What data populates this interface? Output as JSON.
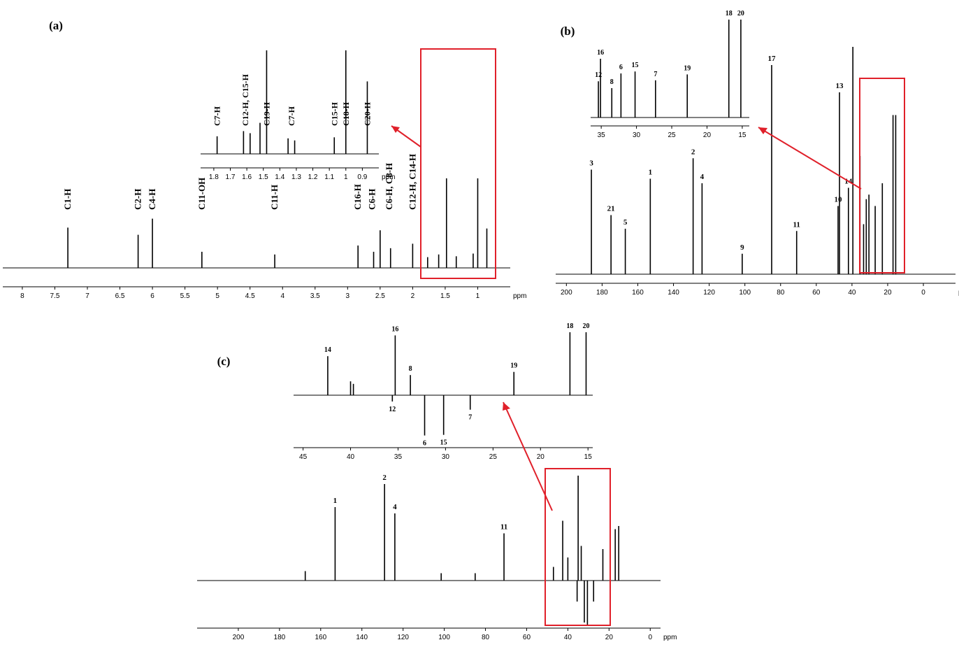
{
  "colors": {
    "trace": "#000000",
    "highlight": "#e0202a",
    "background": "#ffffff"
  },
  "chart_data": [
    {
      "id": "a",
      "type": "line",
      "panel_label": "(a)",
      "unit_label": "ppm",
      "x_axis": {
        "min": 0.5,
        "max": 8.3,
        "reversed": true,
        "ticks": [
          8.0,
          7.5,
          7.0,
          6.5,
          6.0,
          5.5,
          5.0,
          4.5,
          4.0,
          3.5,
          3.0,
          2.5,
          2.0,
          1.5,
          1.0
        ]
      },
      "peaks": [
        {
          "x": 7.3,
          "h": 0.45
        },
        {
          "x": 6.22,
          "h": 0.37
        },
        {
          "x": 6.0,
          "h": 0.55
        },
        {
          "x": 5.24,
          "h": 0.18
        },
        {
          "x": 4.12,
          "h": 0.15
        },
        {
          "x": 2.84,
          "h": 0.25
        },
        {
          "x": 2.6,
          "h": 0.18
        },
        {
          "x": 2.5,
          "h": 0.42
        },
        {
          "x": 2.34,
          "h": 0.22
        },
        {
          "x": 2.0,
          "h": 0.27
        },
        {
          "x": 1.77,
          "h": 0.12
        },
        {
          "x": 1.6,
          "h": 0.15
        },
        {
          "x": 1.48,
          "h": 1.0
        },
        {
          "x": 1.33,
          "h": 0.13
        },
        {
          "x": 1.07,
          "h": 0.16
        },
        {
          "x": 1.0,
          "h": 1.0
        },
        {
          "x": 0.86,
          "h": 0.44
        }
      ],
      "annotations": [
        {
          "text": "C1-H",
          "x": 7.3
        },
        {
          "text": "C2-H",
          "x": 6.22
        },
        {
          "text": "C4-H",
          "x": 6.0
        },
        {
          "text": "C11-OH",
          "x": 5.24
        },
        {
          "text": "C11-H",
          "x": 4.12
        },
        {
          "text": "C16-H",
          "x": 2.84
        },
        {
          "text": "C6-H",
          "x": 2.62
        },
        {
          "text": "C6-H, C8-H",
          "x": 2.36
        },
        {
          "text": "C12-H, C14-H",
          "x": 2.0
        }
      ],
      "inset": {
        "x_axis": {
          "min": 0.8,
          "max": 1.88,
          "reversed": true,
          "ticks": [
            1.8,
            1.7,
            1.6,
            1.5,
            1.4,
            1.3,
            1.2,
            1.1,
            1.0,
            0.9
          ]
        },
        "unit_label": "ppm",
        "peaks": [
          {
            "x": 1.78,
            "h": 0.17
          },
          {
            "x": 1.62,
            "h": 0.22
          },
          {
            "x": 1.58,
            "h": 0.2
          },
          {
            "x": 1.52,
            "h": 0.3
          },
          {
            "x": 1.48,
            "h": 1.0
          },
          {
            "x": 1.35,
            "h": 0.15
          },
          {
            "x": 1.31,
            "h": 0.13
          },
          {
            "x": 1.07,
            "h": 0.16
          },
          {
            "x": 1.0,
            "h": 1.0
          },
          {
            "x": 0.87,
            "h": 0.7
          }
        ],
        "annotations": [
          {
            "text": "C7-H",
            "x": 1.78
          },
          {
            "text": "C12-H, C15-H",
            "x": 1.61
          },
          {
            "text": "C19-H",
            "x": 1.48
          },
          {
            "text": "C7-H",
            "x": 1.33
          },
          {
            "text": "C15-H",
            "x": 1.07
          },
          {
            "text": "C18-H",
            "x": 1.0
          },
          {
            "text": "C20-H",
            "x": 0.87
          }
        ]
      }
    },
    {
      "id": "b",
      "type": "line",
      "panel_label": "(b)",
      "unit_label": "ppm",
      "x_axis": {
        "min": -18,
        "max": 206,
        "reversed": true,
        "ticks": [
          200,
          180,
          160,
          140,
          120,
          100,
          80,
          60,
          40,
          20,
          0
        ]
      },
      "peaks": [
        {
          "x": 186,
          "h": 0.46,
          "label": "3"
        },
        {
          "x": 175,
          "h": 0.26,
          "label": "21"
        },
        {
          "x": 167,
          "h": 0.2,
          "label": "5"
        },
        {
          "x": 153,
          "h": 0.42,
          "label": "1"
        },
        {
          "x": 129,
          "h": 0.51,
          "label": "2"
        },
        {
          "x": 124,
          "h": 0.4,
          "label": "4"
        },
        {
          "x": 101.5,
          "h": 0.09,
          "label": "9"
        },
        {
          "x": 85,
          "h": 0.92,
          "label": "17"
        },
        {
          "x": 71,
          "h": 0.19,
          "label": "11"
        },
        {
          "x": 47,
          "h": 0.8,
          "label": "13"
        },
        {
          "x": 47.8,
          "h": 0.3,
          "label": "10"
        },
        {
          "x": 42,
          "h": 0.38,
          "label": "14"
        },
        {
          "x": 39.5,
          "h": 1.0
        },
        {
          "x": 35.5,
          "h": 0.52
        },
        {
          "x": 33.5,
          "h": 0.22
        },
        {
          "x": 32,
          "h": 0.33
        },
        {
          "x": 30.5,
          "h": 0.35
        },
        {
          "x": 27,
          "h": 0.3
        },
        {
          "x": 23,
          "h": 0.4
        },
        {
          "x": 17,
          "h": 0.7
        },
        {
          "x": 15.5,
          "h": 0.7
        }
      ],
      "inset": {
        "x_axis": {
          "min": 14,
          "max": 36.5,
          "reversed": true,
          "ticks": [
            35,
            30,
            25,
            20,
            15
          ]
        },
        "peaks": [
          {
            "x": 35.4,
            "h": 0.37,
            "label": "12"
          },
          {
            "x": 35.1,
            "h": 0.6,
            "label": "16"
          },
          {
            "x": 33.5,
            "h": 0.3,
            "label": "8"
          },
          {
            "x": 32.2,
            "h": 0.45,
            "label": "6"
          },
          {
            "x": 30.2,
            "h": 0.47,
            "label": "15"
          },
          {
            "x": 27.3,
            "h": 0.38,
            "label": "7"
          },
          {
            "x": 22.8,
            "h": 0.44,
            "label": "19"
          },
          {
            "x": 16.9,
            "h": 1.0,
            "label": "18"
          },
          {
            "x": 15.2,
            "h": 1.0,
            "label": "20"
          }
        ]
      }
    },
    {
      "id": "c",
      "type": "line",
      "panel_label": "(c)",
      "unit_label": "ppm",
      "x_axis": {
        "min": -5,
        "max": 220,
        "reversed": true,
        "ticks": [
          200,
          180,
          160,
          140,
          120,
          100,
          80,
          60,
          40,
          20,
          0
        ]
      },
      "peaks": [
        {
          "x": 167.5,
          "h": 0.09
        },
        {
          "x": 153,
          "h": 0.7,
          "label": "1"
        },
        {
          "x": 129,
          "h": 0.92,
          "label": "2"
        },
        {
          "x": 124,
          "h": 0.64,
          "label": "4"
        },
        {
          "x": 101.5,
          "h": 0.07
        },
        {
          "x": 85,
          "h": 0.07
        },
        {
          "x": 71,
          "h": 0.45,
          "label": "11"
        },
        {
          "x": 47,
          "h": 0.13
        },
        {
          "x": 42.5,
          "h": 0.57
        },
        {
          "x": 40,
          "h": 0.22
        },
        {
          "x": 35.5,
          "h": -0.2
        },
        {
          "x": 35,
          "h": 1.0
        },
        {
          "x": 33.5,
          "h": 0.33
        },
        {
          "x": 32,
          "h": -0.4
        },
        {
          "x": 30.5,
          "h": -0.42
        },
        {
          "x": 27.5,
          "h": -0.2
        },
        {
          "x": 23,
          "h": 0.3
        },
        {
          "x": 17,
          "h": 0.49
        },
        {
          "x": 15.3,
          "h": 0.52
        }
      ],
      "inset": {
        "x_axis": {
          "min": 14.5,
          "max": 46,
          "reversed": true,
          "ticks": [
            45,
            40,
            35,
            30,
            25,
            20,
            15
          ]
        },
        "peaks": [
          {
            "x": 42.4,
            "h": 0.62,
            "label": "14"
          },
          {
            "x": 40,
            "h": 0.22
          },
          {
            "x": 39.7,
            "h": 0.18
          },
          {
            "x": 35.6,
            "h": -0.1,
            "label": "12"
          },
          {
            "x": 35.3,
            "h": 0.95,
            "label": "16"
          },
          {
            "x": 33.7,
            "h": 0.32,
            "label": "8"
          },
          {
            "x": 32.2,
            "h": -0.64,
            "label": "6"
          },
          {
            "x": 30.2,
            "h": -0.63,
            "label": "15"
          },
          {
            "x": 27.4,
            "h": -0.23,
            "label": "7"
          },
          {
            "x": 22.8,
            "h": 0.37,
            "label": "19"
          },
          {
            "x": 16.9,
            "h": 1.0,
            "label": "18"
          },
          {
            "x": 15.2,
            "h": 1.0,
            "label": "20"
          }
        ]
      }
    }
  ]
}
